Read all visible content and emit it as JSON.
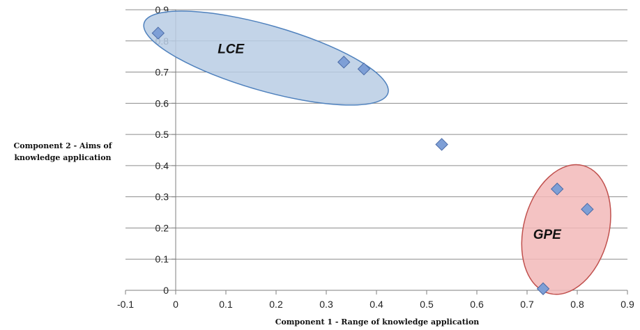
{
  "chart_data": {
    "type": "scatter",
    "title": "",
    "xlabel": "Component 1 - Range of knowledge application",
    "ylabel_lines": [
      "Component 2 - Aims of",
      "knowledge application"
    ],
    "xlim": [
      -0.1,
      0.9
    ],
    "ylim": [
      0,
      0.9
    ],
    "x_ticks": [
      -0.1,
      0,
      0.1,
      0.2,
      0.3,
      0.4,
      0.5,
      0.6,
      0.7,
      0.8,
      0.9
    ],
    "y_ticks": [
      0,
      0.1,
      0.2,
      0.3,
      0.4,
      0.5,
      0.6,
      0.7,
      0.8,
      0.9
    ],
    "x_tick_labels": [
      "-0.1",
      "0",
      "0.1",
      "0.2",
      "0.3",
      "0.4",
      "0.5",
      "0.6",
      "0.7",
      "0.8",
      "0.9"
    ],
    "y_tick_labels": [
      "0",
      "0.1",
      "0.2",
      "0.3",
      "0.4",
      "0.5",
      "0.6",
      "0.7",
      "0.8",
      "0.9"
    ],
    "grid": true,
    "points": [
      {
        "x": -0.035,
        "y": 0.825
      },
      {
        "x": 0.335,
        "y": 0.732
      },
      {
        "x": 0.375,
        "y": 0.71
      },
      {
        "x": 0.53,
        "y": 0.468
      },
      {
        "x": 0.76,
        "y": 0.325
      },
      {
        "x": 0.82,
        "y": 0.26
      },
      {
        "x": 0.732,
        "y": 0.005
      }
    ],
    "clusters": [
      {
        "label": "LCE",
        "fill": "#b8cce4",
        "stroke": "#4f81bd",
        "center": [
          0.18,
          0.745
        ],
        "members": [
          0,
          1,
          2
        ]
      },
      {
        "label": "GPE",
        "fill": "#f2b9b8",
        "stroke": "#c0504d",
        "center": [
          0.778,
          0.195
        ],
        "members": [
          4,
          5,
          6
        ]
      }
    ],
    "colors": {
      "marker_fill": "#7e9fd6",
      "marker_stroke": "#4a6aa6",
      "gridline": "#8c8c8c"
    }
  }
}
